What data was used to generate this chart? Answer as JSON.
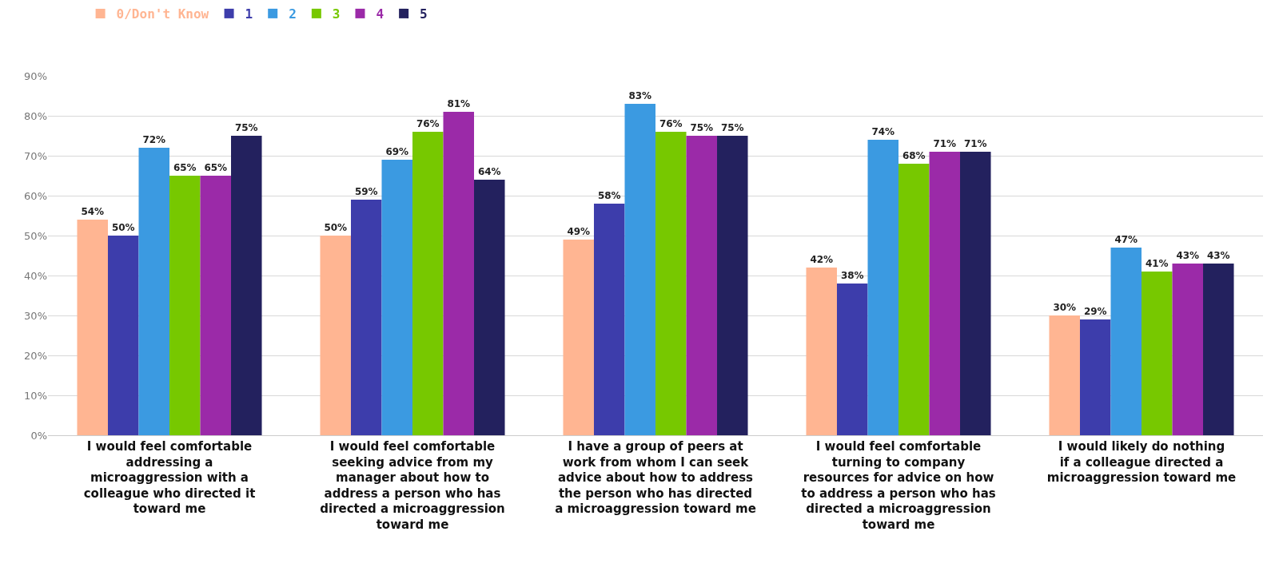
{
  "chart_data": {
    "type": "bar",
    "categories": [
      "I would feel comfortable addressing a microaggression with a colleague who directed it toward me",
      "I would feel comfortable seeking advice from my manager about how to address a person who has directed a microaggression toward me",
      "I have a group of peers at work from whom I can seek advice about how to address the person who has directed a microaggression toward me",
      "I would feel comfortable turning to company resources for advice on how to address a person who has directed a microaggression toward me",
      "I would likely do nothing if a colleague directed a microaggression toward me"
    ],
    "series": [
      {
        "name": "0/Don't Know",
        "color": "#ffb592",
        "values": [
          54,
          50,
          49,
          42,
          30
        ],
        "value_labels": [
          "54%",
          "50%",
          "49%",
          "42%",
          "30%"
        ]
      },
      {
        "name": "1",
        "color": "#3d3dab",
        "values": [
          50,
          59,
          58,
          38,
          29
        ],
        "value_labels": [
          "50%",
          "59%",
          "58%",
          "38%",
          "29%"
        ]
      },
      {
        "name": "2",
        "color": "#3b9ae1",
        "values": [
          72,
          69,
          83,
          74,
          47
        ],
        "value_labels": [
          "72%",
          "69%",
          "83%",
          "74%",
          "47%"
        ]
      },
      {
        "name": "3",
        "color": "#77c800",
        "values": [
          65,
          76,
          76,
          68,
          41
        ],
        "value_labels": [
          "65%",
          "76%",
          "76%",
          "68%",
          "41%"
        ]
      },
      {
        "name": "4",
        "color": "#9b2aa8",
        "values": [
          65,
          81,
          75,
          71,
          43
        ],
        "value_labels": [
          "65%",
          "81%",
          "75%",
          "71%",
          "43%"
        ]
      },
      {
        "name": "5",
        "color": "#23215e",
        "values": [
          75,
          64,
          75,
          71,
          43
        ],
        "value_labels": [
          "75%",
          "64%",
          "75%",
          "71%",
          "43%"
        ]
      }
    ],
    "ylim": [
      0,
      90
    ],
    "yticks": [
      {
        "value": 0,
        "label": "0%"
      },
      {
        "value": 10,
        "label": "10%"
      },
      {
        "value": 20,
        "label": "20%"
      },
      {
        "value": 30,
        "label": "30%"
      },
      {
        "value": 40,
        "label": "40%"
      },
      {
        "value": 50,
        "label": "50%"
      },
      {
        "value": 60,
        "label": "60%"
      },
      {
        "value": 70,
        "label": "70%"
      },
      {
        "value": 80,
        "label": "80%"
      },
      {
        "value": 90,
        "label": "90%"
      }
    ],
    "grid": "y",
    "legend": "top left"
  }
}
